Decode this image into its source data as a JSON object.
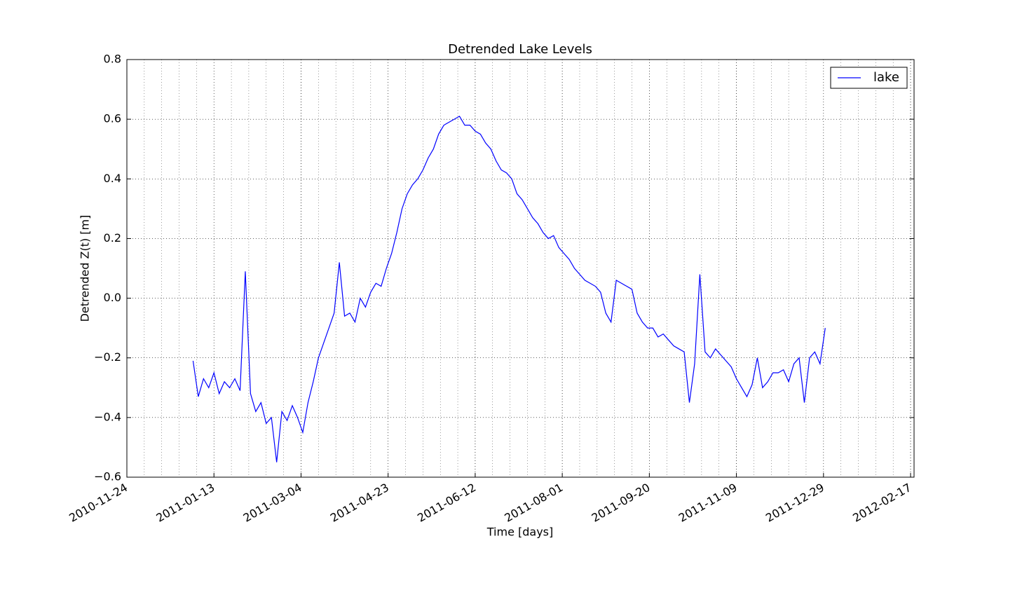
{
  "chart_data": {
    "type": "line",
    "title": "Detrended Lake Levels",
    "x_label": "Time [days]",
    "y_label": "Detrended Z(t) [m]",
    "x": [
      "2011-01-01",
      "2011-01-04",
      "2011-01-07",
      "2011-01-10",
      "2011-01-13",
      "2011-01-16",
      "2011-01-19",
      "2011-01-22",
      "2011-01-25",
      "2011-01-28",
      "2011-01-31",
      "2011-02-03",
      "2011-02-06",
      "2011-02-09",
      "2011-02-12",
      "2011-02-15",
      "2011-02-18",
      "2011-02-21",
      "2011-02-24",
      "2011-02-27",
      "2011-03-02",
      "2011-03-05",
      "2011-03-08",
      "2011-03-11",
      "2011-03-14",
      "2011-03-17",
      "2011-03-20",
      "2011-03-23",
      "2011-03-26",
      "2011-03-29",
      "2011-04-01",
      "2011-04-04",
      "2011-04-07",
      "2011-04-10",
      "2011-04-13",
      "2011-04-16",
      "2011-04-19",
      "2011-04-22",
      "2011-04-25",
      "2011-04-28",
      "2011-05-01",
      "2011-05-04",
      "2011-05-07",
      "2011-05-10",
      "2011-05-13",
      "2011-05-16",
      "2011-05-19",
      "2011-05-22",
      "2011-05-25",
      "2011-05-28",
      "2011-05-31",
      "2011-06-03",
      "2011-06-06",
      "2011-06-09",
      "2011-06-12",
      "2011-06-15",
      "2011-06-18",
      "2011-06-21",
      "2011-06-24",
      "2011-06-27",
      "2011-06-30",
      "2011-07-03",
      "2011-07-06",
      "2011-07-09",
      "2011-07-12",
      "2011-07-15",
      "2011-07-18",
      "2011-07-21",
      "2011-07-24",
      "2011-07-27",
      "2011-07-30",
      "2011-08-02",
      "2011-08-05",
      "2011-08-08",
      "2011-08-11",
      "2011-08-14",
      "2011-08-17",
      "2011-08-20",
      "2011-08-23",
      "2011-08-26",
      "2011-08-29",
      "2011-09-01",
      "2011-09-04",
      "2011-09-07",
      "2011-09-10",
      "2011-09-13",
      "2011-09-16",
      "2011-09-19",
      "2011-09-22",
      "2011-09-25",
      "2011-09-28",
      "2011-10-01",
      "2011-10-04",
      "2011-10-07",
      "2011-10-10",
      "2011-10-13",
      "2011-10-16",
      "2011-10-19",
      "2011-10-22",
      "2011-10-25",
      "2011-10-28",
      "2011-10-31",
      "2011-11-03",
      "2011-11-06",
      "2011-11-09",
      "2011-11-12",
      "2011-11-15",
      "2011-11-18",
      "2011-11-21",
      "2011-11-24",
      "2011-11-27",
      "2011-11-30",
      "2011-12-03",
      "2011-12-06",
      "2011-12-09",
      "2011-12-12",
      "2011-12-15",
      "2011-12-18",
      "2011-12-21",
      "2011-12-24",
      "2011-12-27",
      "2011-12-30"
    ],
    "series": [
      {
        "name": "lake",
        "color": "#0000ff",
        "values": [
          -0.21,
          -0.33,
          -0.27,
          -0.3,
          -0.25,
          -0.32,
          -0.28,
          -0.3,
          -0.27,
          -0.31,
          0.09,
          -0.32,
          -0.38,
          -0.35,
          -0.42,
          -0.4,
          -0.55,
          -0.38,
          -0.41,
          -0.36,
          -0.4,
          -0.45,
          -0.35,
          -0.28,
          -0.2,
          -0.15,
          -0.1,
          -0.05,
          0.12,
          -0.06,
          -0.05,
          -0.08,
          0.0,
          -0.03,
          0.02,
          0.05,
          0.04,
          0.1,
          0.15,
          0.22,
          0.3,
          0.35,
          0.38,
          0.4,
          0.43,
          0.47,
          0.5,
          0.55,
          0.58,
          0.59,
          0.6,
          0.61,
          0.58,
          0.58,
          0.56,
          0.55,
          0.52,
          0.5,
          0.46,
          0.43,
          0.42,
          0.4,
          0.35,
          0.33,
          0.3,
          0.27,
          0.25,
          0.22,
          0.2,
          0.21,
          0.17,
          0.15,
          0.13,
          0.1,
          0.08,
          0.06,
          0.05,
          0.04,
          0.02,
          -0.05,
          -0.08,
          0.06,
          0.05,
          0.04,
          0.03,
          -0.05,
          -0.08,
          -0.1,
          -0.1,
          -0.13,
          -0.12,
          -0.14,
          -0.16,
          -0.17,
          -0.18,
          -0.35,
          -0.22,
          0.08,
          -0.18,
          -0.2,
          -0.17,
          -0.19,
          -0.21,
          -0.23,
          -0.27,
          -0.3,
          -0.33,
          -0.29,
          -0.2,
          -0.3,
          -0.28,
          -0.25,
          -0.25,
          -0.24,
          -0.28,
          -0.22,
          -0.2,
          -0.35,
          -0.2,
          -0.18,
          -0.22,
          -0.1
        ]
      }
    ],
    "xlim": [
      "2010-11-24",
      "2012-02-19"
    ],
    "xticks": [
      "2010-11-24",
      "2011-01-13",
      "2011-03-04",
      "2011-04-23",
      "2011-06-12",
      "2011-08-01",
      "2011-09-20",
      "2011-11-09",
      "2011-12-29",
      "2012-02-17"
    ],
    "ylim": [
      -0.6,
      0.8
    ],
    "yticks": [
      {
        "value": -0.6,
        "label": "−0.6"
      },
      {
        "value": -0.4,
        "label": "−0.4"
      },
      {
        "value": -0.2,
        "label": "−0.2"
      },
      {
        "value": 0,
        "label": "0.0"
      },
      0.2,
      0.4,
      0.6,
      0.8
    ],
    "grid": true,
    "legend": "upper right"
  }
}
